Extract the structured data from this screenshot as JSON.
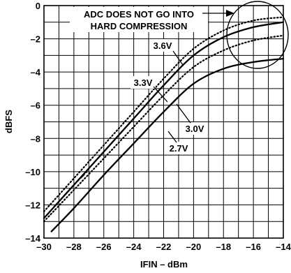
{
  "chart_data": {
    "type": "line",
    "xlabel": "IFIN – dBm",
    "ylabel": "dBFS",
    "xlim": [
      -30,
      -14
    ],
    "ylim": [
      -14,
      0
    ],
    "x_ticks": [
      -30,
      -28,
      -26,
      -24,
      -22,
      -20,
      -18,
      -16,
      -14
    ],
    "y_ticks": [
      0,
      -2,
      -4,
      -6,
      -8,
      -10,
      -12,
      -14
    ],
    "grid": true,
    "series": [
      {
        "name": "3.6V",
        "style": "dotted",
        "points": [
          [
            -30,
            -12.4
          ],
          [
            -28,
            -10.4
          ],
          [
            -26,
            -8.4
          ],
          [
            -24,
            -6.4
          ],
          [
            -22,
            -4.4
          ],
          [
            -20,
            -2.6
          ],
          [
            -18,
            -1.5
          ],
          [
            -16,
            -0.9
          ],
          [
            -14,
            -0.7
          ]
        ]
      },
      {
        "name": "3.3V",
        "style": "solid",
        "points": [
          [
            -30,
            -12.8
          ],
          [
            -28,
            -10.8
          ],
          [
            -26,
            -8.8
          ],
          [
            -24,
            -6.8
          ],
          [
            -22,
            -4.8
          ],
          [
            -20,
            -3.0
          ],
          [
            -18,
            -1.9
          ],
          [
            -16,
            -1.3
          ],
          [
            -14,
            -1.0
          ]
        ]
      },
      {
        "name": "",
        "style": "dashed",
        "points": [
          [
            -29.2,
            -12.0
          ],
          [
            -28,
            -10.8
          ],
          [
            -27,
            -9.9
          ]
        ]
      },
      {
        "name": "3.0V",
        "style": "dotted",
        "points": [
          [
            -30,
            -13.0
          ],
          [
            -28,
            -11.1
          ],
          [
            -26,
            -9.2
          ],
          [
            -24,
            -7.3
          ],
          [
            -22,
            -5.4
          ],
          [
            -20,
            -3.7
          ],
          [
            -18,
            -2.7
          ],
          [
            -16,
            -2.1
          ],
          [
            -14,
            -1.8
          ]
        ]
      },
      {
        "name": "2.7V",
        "style": "solid",
        "points": [
          [
            -29.5,
            -13.6
          ],
          [
            -28,
            -12.2
          ],
          [
            -26,
            -10.2
          ],
          [
            -24,
            -8.3
          ],
          [
            -22,
            -6.4
          ],
          [
            -20,
            -4.7
          ],
          [
            -18,
            -3.8
          ],
          [
            -16,
            -3.4
          ],
          [
            -14,
            -3.2
          ]
        ]
      }
    ],
    "annotations": {
      "main_line1": "ADC DOES NOT GO INTO",
      "main_line2": "HARD COMPRESSION"
    }
  }
}
